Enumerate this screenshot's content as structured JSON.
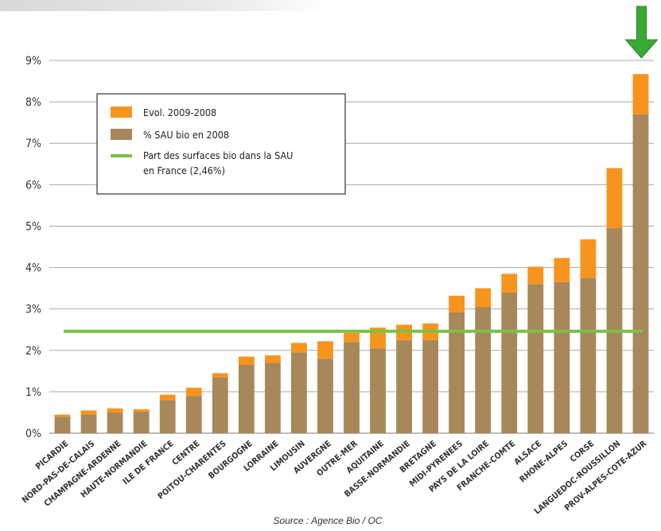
{
  "chart_data": {
    "type": "bar",
    "stacked": true,
    "categories": [
      "PICARDIE",
      "NORD-PAS-DE-CALAIS",
      "CHAMPAGNE-ARDENNE",
      "HAUTE-NORMANDIE",
      "ILE DE FRANCE",
      "CENTRE",
      "POITOU-CHARENTES",
      "BOURGOGNE",
      "LORRAINE",
      "LIMOUSIN",
      "AUVERGNE",
      "OUTRE-MER",
      "AQUITAINE",
      "BASSE-NORMANDIE",
      "BRETAGNE",
      "MIDI-PYRENEES",
      "PAYS DE LA LOIRE",
      "FRANCHE-COMTE",
      "ALSACE",
      "RHONE-ALPES",
      "CORSE",
      "LANGUEDOC-ROUSSILLON",
      "PROV-ALPES-COTE-AZUR"
    ],
    "series": [
      {
        "name": "% SAU bio en 2008",
        "color": "#a8875a",
        "values": [
          0.4,
          0.45,
          0.5,
          0.52,
          0.8,
          0.9,
          1.35,
          1.65,
          1.7,
          1.95,
          1.8,
          2.2,
          2.05,
          2.25,
          2.25,
          2.92,
          3.05,
          3.4,
          3.6,
          3.65,
          3.75,
          4.95,
          7.7
        ]
      },
      {
        "name": "Evol. 2009-2008",
        "color": "#f7941d",
        "values": [
          0.05,
          0.1,
          0.1,
          0.06,
          0.13,
          0.2,
          0.1,
          0.2,
          0.18,
          0.23,
          0.42,
          0.22,
          0.5,
          0.37,
          0.4,
          0.4,
          0.45,
          0.45,
          0.42,
          0.58,
          0.93,
          1.45,
          0.97
        ]
      }
    ],
    "reference_line": {
      "name": "Part des surfaces bio dans la SAU en France (2,46%)",
      "value": 2.46,
      "color": "#7ac143"
    },
    "y_ticks": [
      "0%",
      "1%",
      "2%",
      "3%",
      "4%",
      "5%",
      "6%",
      "7%",
      "8%",
      "9%"
    ],
    "ylim": [
      0,
      9
    ],
    "grid": "horizontal",
    "legend_position": "top-left",
    "highlight_arrow_category": "PROV-ALPES-COTE-AZUR",
    "arrow_color": "#3aaa35",
    "source": "Source : Agence Bio / OC"
  }
}
